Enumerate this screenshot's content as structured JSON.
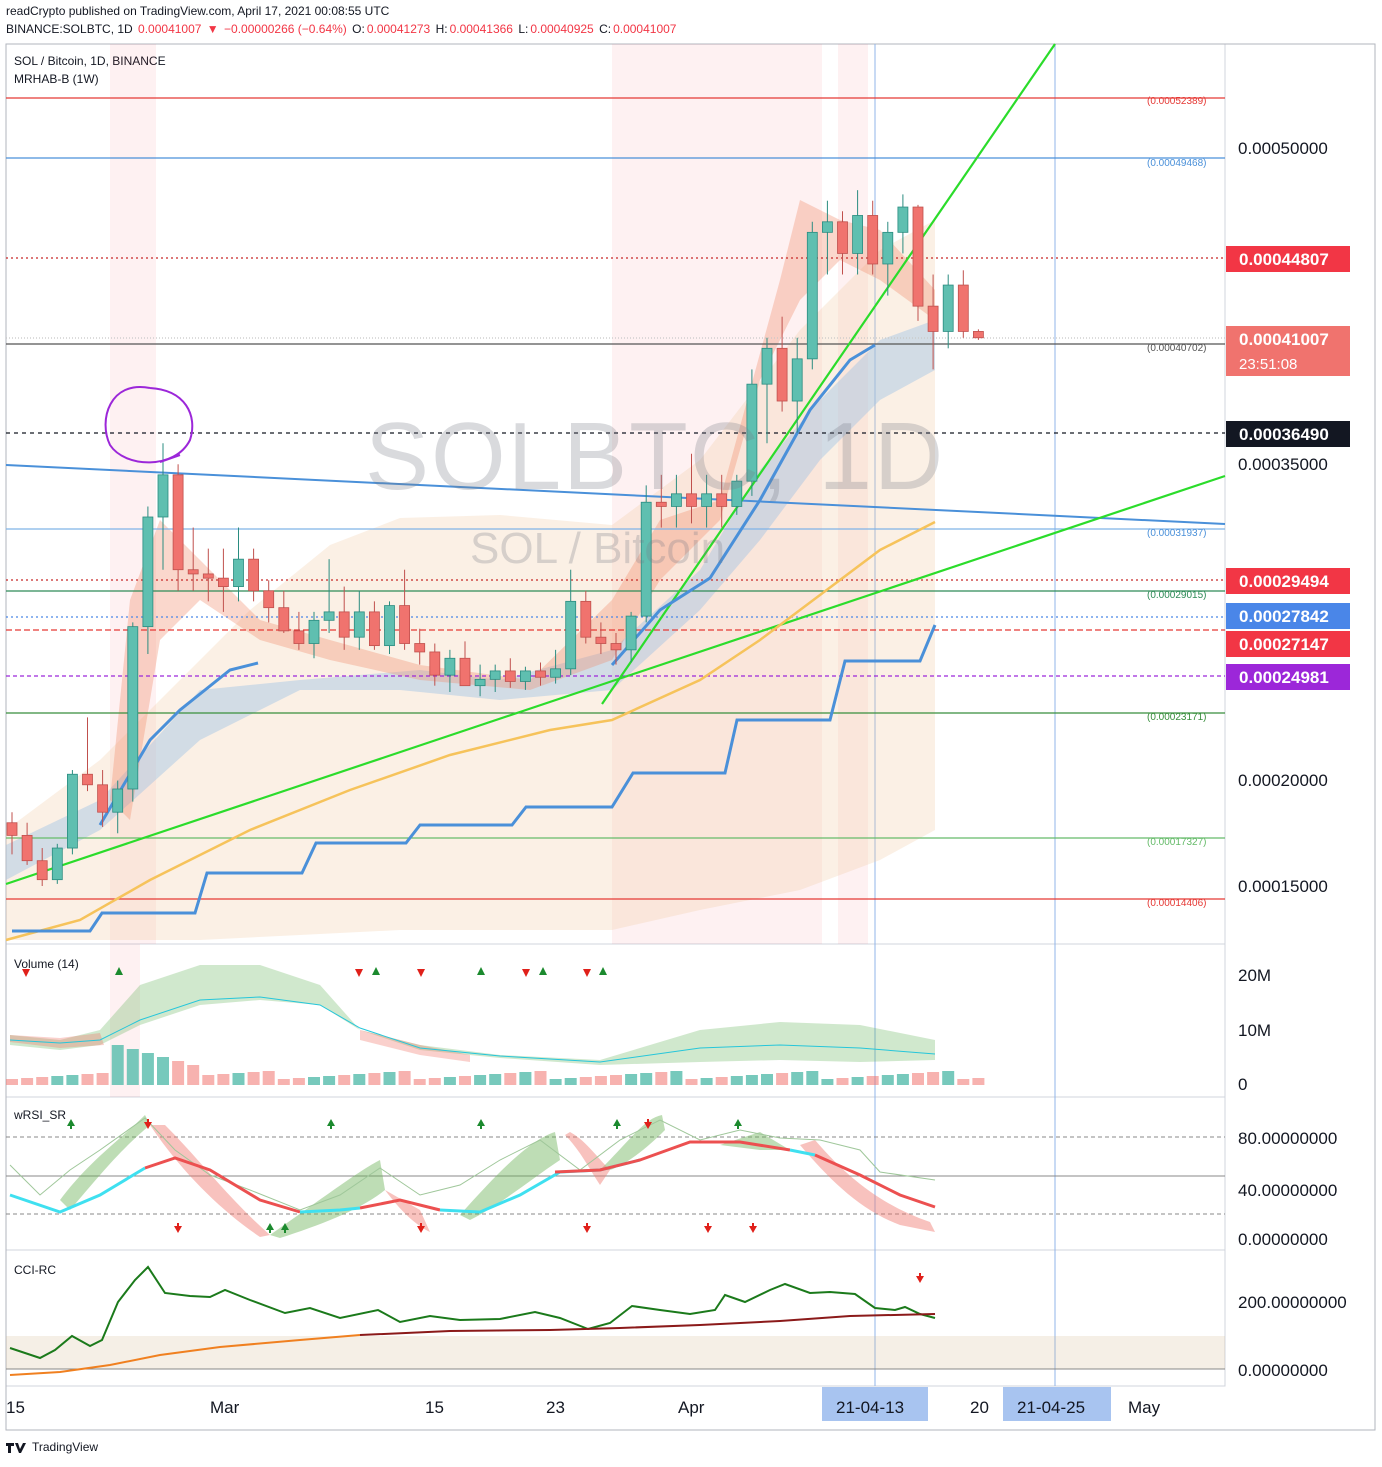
{
  "header": {
    "publisher_line": "readCrypto published on TradingView.com, April 17, 2021 00:08:55 UTC",
    "symbol_line": "BINANCE:SOLBTC, 1D",
    "last": "0.00041007",
    "change": "−0.00000266 (−0.64%)",
    "o_label": "O:",
    "o": "0.00041273",
    "h_label": "H:",
    "h": "0.00041366",
    "l_label": "L:",
    "l": "0.00040925",
    "c_label": "C:",
    "c": "0.00041007",
    "legend_title": "SOL / Bitcoin, 1D, BINANCE",
    "legend_indicator": "MRHAB-B (1W)"
  },
  "watermark": {
    "line1": "SOLBTC, 1D",
    "line2": "SOL / Bitcoin"
  },
  "footer": {
    "brand": "TradingView"
  },
  "colors": {
    "up": "#5fbfb0",
    "down": "#f0736e",
    "green_line": "#2bdc2b",
    "blue_line": "#4a90d9",
    "red_level": "#e53935"
  },
  "chart_data": {
    "type": "candlestick",
    "x_axis": {
      "labels": [
        "15",
        "Mar",
        "15",
        "23",
        "Apr",
        "20",
        "May"
      ],
      "highlight_labels": [
        "21-04-13",
        "21-04-25"
      ]
    },
    "y_axis": {
      "labels": [
        "0.00050000",
        "0.00035000",
        "0.00020000",
        "0.00015000"
      ],
      "range": [
        0.00012,
        0.000543
      ]
    },
    "level_labels": [
      "0.00052389",
      "0.00049468",
      "0.00040702",
      "0.00031937",
      "0.00029015",
      "0.00023171",
      "0.00017327",
      "0.00014406"
    ],
    "price_tags": [
      {
        "value": "0.00044807",
        "color": "#f23645"
      },
      {
        "value": "0.00041007",
        "color": "#f0736e",
        "countdown": "23:51:08"
      },
      {
        "value": "0.00036490",
        "color": "#131722"
      },
      {
        "value": "0.00029494",
        "color": "#f23645"
      },
      {
        "value": "0.00027842",
        "color": "#4a86e8"
      },
      {
        "value": "0.00027147",
        "color": "#f23645"
      },
      {
        "value": "0.00024981",
        "color": "#9c27d9"
      }
    ],
    "candles": [
      [
        0.00018,
        0.000185,
        0.000165,
        0.000174
      ],
      [
        0.000174,
        0.00018,
        0.00016,
        0.000162
      ],
      [
        0.000162,
        0.000168,
        0.00015,
        0.000153
      ],
      [
        0.000153,
        0.00017,
        0.000151,
        0.000168
      ],
      [
        0.000168,
        0.000205,
        0.000165,
        0.000203
      ],
      [
        0.000203,
        0.00023,
        0.000195,
        0.000198
      ],
      [
        0.000198,
        0.000205,
        0.000178,
        0.000185
      ],
      [
        0.000185,
        0.0002,
        0.000175,
        0.000196
      ],
      [
        0.000196,
        0.000275,
        0.00019,
        0.000273
      ],
      [
        0.000273,
        0.00033,
        0.00026,
        0.000325
      ],
      [
        0.000325,
        0.00036,
        0.0003,
        0.000345
      ],
      [
        0.000345,
        0.00035,
        0.00029,
        0.0003
      ],
      [
        0.0003,
        0.00032,
        0.00029,
        0.000298
      ],
      [
        0.000298,
        0.00031,
        0.000285,
        0.000296
      ],
      [
        0.000296,
        0.00031,
        0.00028,
        0.000292
      ],
      [
        0.000292,
        0.00032,
        0.000285,
        0.000305
      ],
      [
        0.000305,
        0.00031,
        0.000285,
        0.00029
      ],
      [
        0.00029,
        0.000295,
        0.000275,
        0.000282
      ],
      [
        0.000282,
        0.00029,
        0.00027,
        0.000271
      ],
      [
        0.000271,
        0.00028,
        0.000262,
        0.000265
      ],
      [
        0.000265,
        0.00028,
        0.000258,
        0.000276
      ],
      [
        0.000276,
        0.000305,
        0.00027,
        0.00028
      ],
      [
        0.00028,
        0.000292,
        0.000262,
        0.000268
      ],
      [
        0.000268,
        0.00029,
        0.000262,
        0.00028
      ],
      [
        0.00028,
        0.000285,
        0.000262,
        0.000264
      ],
      [
        0.000264,
        0.000285,
        0.00026,
        0.000283
      ],
      [
        0.000283,
        0.0003,
        0.000262,
        0.000265
      ],
      [
        0.000265,
        0.000272,
        0.000255,
        0.000261
      ],
      [
        0.000261,
        0.000265,
        0.000245,
        0.00025
      ],
      [
        0.00025,
        0.000262,
        0.000242,
        0.000258
      ],
      [
        0.000258,
        0.000266,
        0.000248,
        0.000245
      ],
      [
        0.000245,
        0.000255,
        0.00024,
        0.000248
      ],
      [
        0.000248,
        0.000255,
        0.000242,
        0.000252
      ],
      [
        0.000252,
        0.000258,
        0.000244,
        0.000247
      ],
      [
        0.000247,
        0.000254,
        0.000243,
        0.000252
      ],
      [
        0.000252,
        0.000256,
        0.000245,
        0.000249
      ],
      [
        0.000249,
        0.000262,
        0.000246,
        0.000253
      ],
      [
        0.000253,
        0.0003,
        0.00025,
        0.000285
      ],
      [
        0.000285,
        0.00029,
        0.000265,
        0.000268
      ],
      [
        0.000268,
        0.000275,
        0.00026,
        0.000265
      ],
      [
        0.000265,
        0.00027,
        0.000255,
        0.000262
      ],
      [
        0.000262,
        0.00028,
        0.000256,
        0.000278
      ],
      [
        0.000278,
        0.00034,
        0.000275,
        0.000332
      ],
      [
        0.000332,
        0.000345,
        0.00032,
        0.00033
      ],
      [
        0.00033,
        0.000345,
        0.00032,
        0.000336
      ],
      [
        0.000336,
        0.000355,
        0.000322,
        0.00033
      ],
      [
        0.00033,
        0.000345,
        0.00032,
        0.000336
      ],
      [
        0.000336,
        0.000345,
        0.00032,
        0.00033
      ],
      [
        0.00033,
        0.000345,
        0.000326,
        0.000342
      ],
      [
        0.000342,
        0.000395,
        0.000335,
        0.000388
      ],
      [
        0.000388,
        0.00041,
        0.00036,
        0.000405
      ],
      [
        0.000405,
        0.00042,
        0.000375,
        0.00038
      ],
      [
        0.00038,
        0.00041,
        0.000365,
        0.0004
      ],
      [
        0.0004,
        0.000465,
        0.000395,
        0.00046
      ],
      [
        0.00046,
        0.000475,
        0.00044,
        0.000465
      ],
      [
        0.000465,
        0.00047,
        0.00044,
        0.00045
      ],
      [
        0.00045,
        0.00048,
        0.00044,
        0.000468
      ],
      [
        0.000468,
        0.000475,
        0.00044,
        0.000445
      ],
      [
        0.000445,
        0.000465,
        0.00043,
        0.00046
      ],
      [
        0.00046,
        0.000478,
        0.00045,
        0.000472
      ],
      [
        0.000472,
        0.000473,
        0.000418,
        0.000425
      ],
      [
        0.000425,
        0.00044,
        0.000395,
        0.000413
      ],
      [
        0.000413,
        0.00044,
        0.000405,
        0.000435
      ],
      [
        0.000435,
        0.000442,
        0.00041,
        0.000413
      ],
      [
        0.000413,
        0.000414,
        0.000409,
        0.00041
      ]
    ],
    "panes": [
      {
        "name": "Volume (14)",
        "y_labels": [
          "20M",
          "10M",
          "0"
        ]
      },
      {
        "name": "wRSI_SR",
        "y_labels": [
          "80.00000000",
          "40.00000000",
          "0.00000000"
        ]
      },
      {
        "name": "CCI-RC",
        "y_labels": [
          "200.00000000",
          "0.00000000"
        ]
      }
    ]
  }
}
